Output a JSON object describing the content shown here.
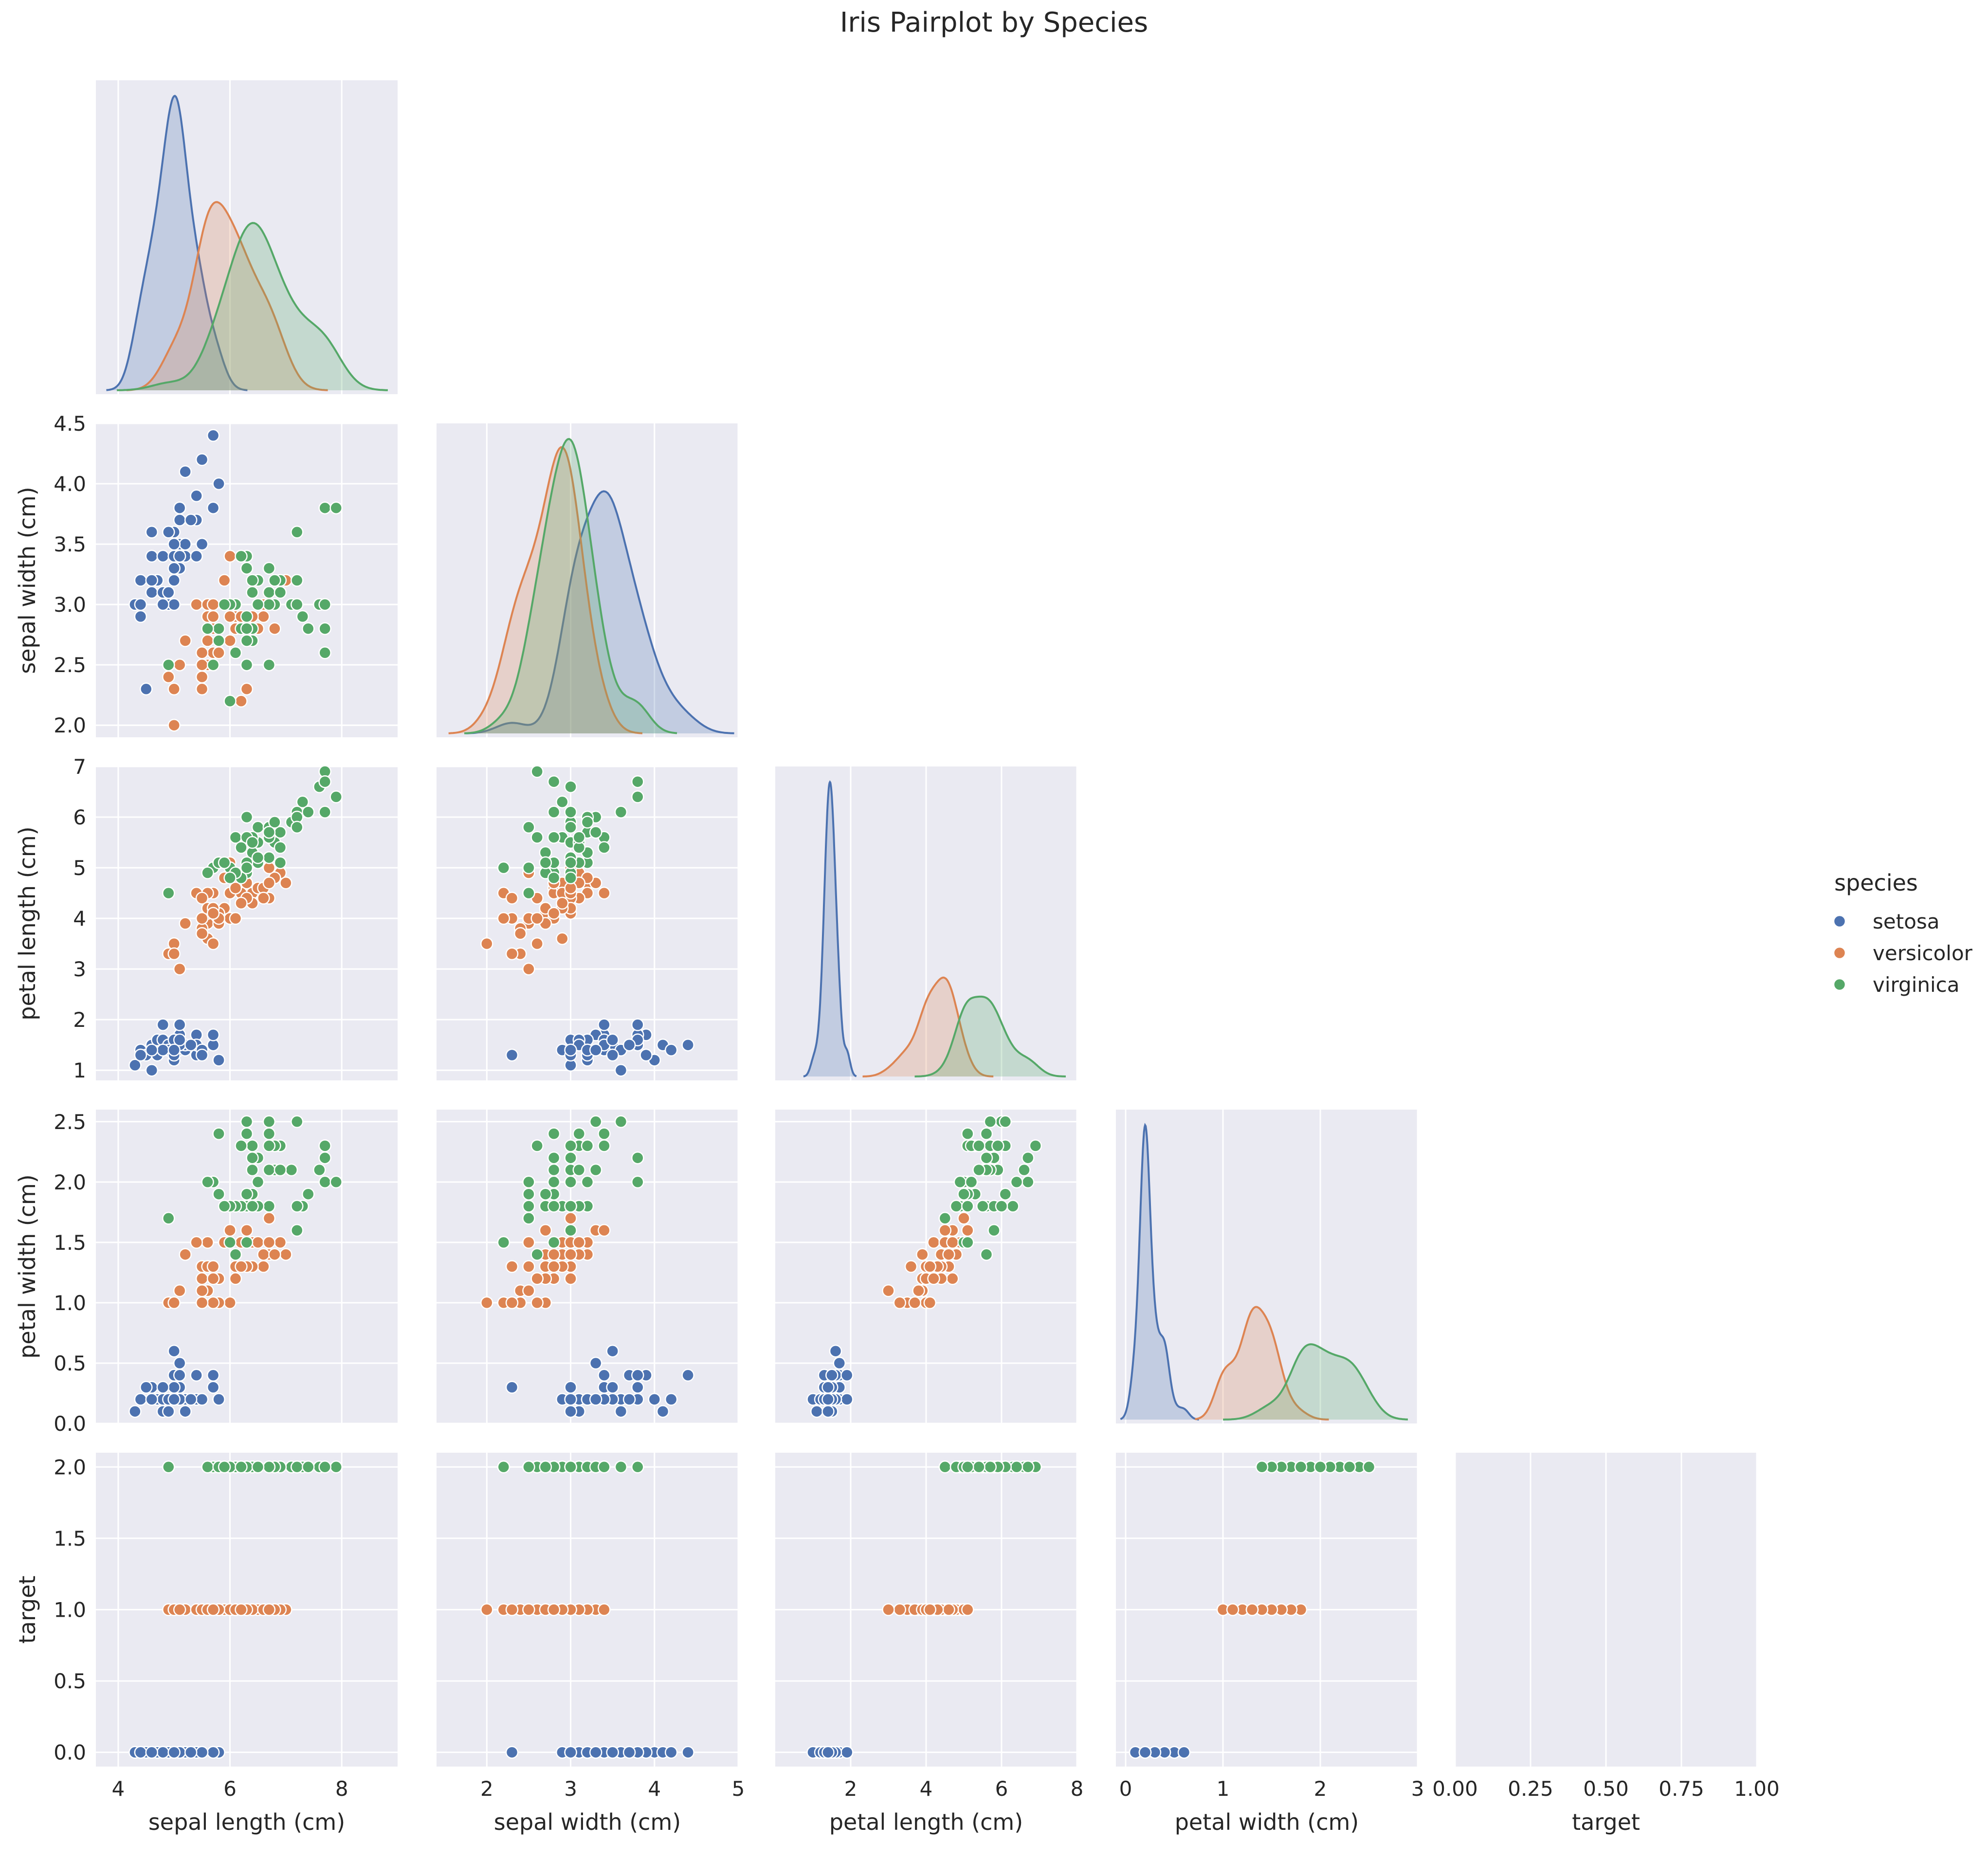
{
  "title": "Iris Pairplot by Species",
  "chart_data": {
    "type": "scatter",
    "variables": [
      {
        "key": "sl",
        "label": "sepal length (cm)",
        "range": [
          3.6,
          9.0
        ],
        "ticks": [
          4,
          6,
          8
        ],
        "tick_labels": [
          "4",
          "6",
          "8"
        ]
      },
      {
        "key": "sw",
        "label": "sepal width (cm)",
        "range": [
          1.9,
          4.5
        ],
        "ticks": [
          2.0,
          2.5,
          3.0,
          3.5,
          4.0,
          4.5
        ],
        "tick_labels": [
          "2.0",
          "2.5",
          "3.0",
          "3.5",
          "4.0",
          "4.5"
        ],
        "x_ticks": [
          2,
          3,
          4,
          5
        ],
        "x_tick_labels": [
          "2",
          "3",
          "4",
          "5"
        ],
        "x_range": [
          1.4,
          5.0
        ]
      },
      {
        "key": "pl",
        "label": "petal length (cm)",
        "range": [
          0.8,
          7.0
        ],
        "ticks": [
          1,
          2,
          3,
          4,
          5,
          6,
          7
        ],
        "tick_labels": [
          "1",
          "2",
          "3",
          "4",
          "5",
          "6",
          "7"
        ],
        "x_ticks": [
          2,
          4,
          6,
          8
        ],
        "x_tick_labels": [
          "2",
          "4",
          "6",
          "8"
        ],
        "x_range": [
          0.0,
          8.0
        ]
      },
      {
        "key": "pw",
        "label": "petal width (cm)",
        "range": [
          0.0,
          2.6
        ],
        "ticks": [
          0.0,
          0.5,
          1.0,
          1.5,
          2.0,
          2.5
        ],
        "tick_labels": [
          "0.0",
          "0.5",
          "1.0",
          "1.5",
          "2.0",
          "2.5"
        ],
        "x_ticks": [
          0,
          1,
          2,
          3
        ],
        "x_tick_labels": [
          "0",
          "1",
          "2",
          "3"
        ],
        "x_range": [
          -0.1,
          3.0
        ]
      },
      {
        "key": "t",
        "label": "target",
        "range": [
          -0.1,
          2.1
        ],
        "ticks": [
          0.0,
          0.5,
          1.0,
          1.5,
          2.0
        ],
        "tick_labels": [
          "0.0",
          "0.5",
          "1.0",
          "1.5",
          "2.0"
        ],
        "x_ticks": [
          0.0,
          0.25,
          0.5,
          0.75,
          1.0
        ],
        "x_tick_labels": [
          "0.00",
          "0.25",
          "0.50",
          "0.75",
          "1.00"
        ],
        "x_range": [
          0.0,
          1.0
        ]
      }
    ],
    "legend": {
      "title": "species",
      "placement": "right",
      "entries": [
        {
          "name": "setosa",
          "color": "#4c72b0"
        },
        {
          "name": "versicolor",
          "color": "#dd8452"
        },
        {
          "name": "virginica",
          "color": "#55a868"
        }
      ]
    },
    "kde_peaks": [
      {
        "variable": "sepal length (cm)",
        "setosa": 5.0,
        "versicolor": 5.9,
        "virginica": 6.5
      },
      {
        "variable": "sepal width (cm)",
        "setosa": 3.4,
        "versicolor": 2.8,
        "virginica": 3.0
      },
      {
        "variable": "petal length (cm)",
        "setosa": 1.5,
        "versicolor": 4.4,
        "virginica": 5.5
      },
      {
        "variable": "petal width (cm)",
        "setosa": 0.2,
        "versicolor": 1.3,
        "virginica": 2.0
      }
    ],
    "series": [
      {
        "name": "setosa",
        "target": 0,
        "points": [
          [
            5.1,
            3.5,
            1.4,
            0.2
          ],
          [
            4.9,
            3.0,
            1.4,
            0.2
          ],
          [
            4.7,
            3.2,
            1.3,
            0.2
          ],
          [
            4.6,
            3.1,
            1.5,
            0.2
          ],
          [
            5.0,
            3.6,
            1.4,
            0.2
          ],
          [
            5.4,
            3.9,
            1.7,
            0.4
          ],
          [
            4.6,
            3.4,
            1.4,
            0.3
          ],
          [
            5.0,
            3.4,
            1.5,
            0.2
          ],
          [
            4.4,
            2.9,
            1.4,
            0.2
          ],
          [
            4.9,
            3.1,
            1.5,
            0.1
          ],
          [
            5.4,
            3.7,
            1.5,
            0.2
          ],
          [
            4.8,
            3.4,
            1.6,
            0.2
          ],
          [
            4.8,
            3.0,
            1.4,
            0.1
          ],
          [
            4.3,
            3.0,
            1.1,
            0.1
          ],
          [
            5.8,
            4.0,
            1.2,
            0.2
          ],
          [
            5.7,
            4.4,
            1.5,
            0.4
          ],
          [
            5.4,
            3.9,
            1.3,
            0.4
          ],
          [
            5.1,
            3.5,
            1.4,
            0.3
          ],
          [
            5.7,
            3.8,
            1.7,
            0.3
          ],
          [
            5.1,
            3.8,
            1.5,
            0.3
          ],
          [
            5.4,
            3.4,
            1.7,
            0.2
          ],
          [
            5.1,
            3.7,
            1.5,
            0.4
          ],
          [
            4.6,
            3.6,
            1.0,
            0.2
          ],
          [
            5.1,
            3.3,
            1.7,
            0.5
          ],
          [
            4.8,
            3.4,
            1.9,
            0.2
          ],
          [
            5.0,
            3.0,
            1.6,
            0.2
          ],
          [
            5.0,
            3.4,
            1.6,
            0.4
          ],
          [
            5.2,
            3.5,
            1.5,
            0.2
          ],
          [
            5.2,
            3.4,
            1.4,
            0.2
          ],
          [
            4.7,
            3.2,
            1.6,
            0.2
          ],
          [
            4.8,
            3.1,
            1.6,
            0.2
          ],
          [
            5.4,
            3.4,
            1.5,
            0.4
          ],
          [
            5.2,
            4.1,
            1.5,
            0.1
          ],
          [
            5.5,
            4.2,
            1.4,
            0.2
          ],
          [
            4.9,
            3.1,
            1.5,
            0.2
          ],
          [
            5.0,
            3.2,
            1.2,
            0.2
          ],
          [
            5.5,
            3.5,
            1.3,
            0.2
          ],
          [
            4.9,
            3.6,
            1.4,
            0.1
          ],
          [
            4.4,
            3.0,
            1.3,
            0.2
          ],
          [
            5.1,
            3.4,
            1.5,
            0.2
          ],
          [
            5.0,
            3.5,
            1.3,
            0.3
          ],
          [
            4.5,
            2.3,
            1.3,
            0.3
          ],
          [
            4.4,
            3.2,
            1.3,
            0.2
          ],
          [
            5.0,
            3.5,
            1.6,
            0.6
          ],
          [
            5.1,
            3.8,
            1.9,
            0.4
          ],
          [
            4.8,
            3.0,
            1.4,
            0.3
          ],
          [
            5.1,
            3.8,
            1.6,
            0.2
          ],
          [
            4.6,
            3.2,
            1.4,
            0.2
          ],
          [
            5.3,
            3.7,
            1.5,
            0.2
          ],
          [
            5.0,
            3.3,
            1.4,
            0.2
          ]
        ]
      },
      {
        "name": "versicolor",
        "target": 1,
        "points": [
          [
            7.0,
            3.2,
            4.7,
            1.4
          ],
          [
            6.4,
            3.2,
            4.5,
            1.5
          ],
          [
            6.9,
            3.1,
            4.9,
            1.5
          ],
          [
            5.5,
            2.3,
            4.0,
            1.3
          ],
          [
            6.5,
            2.8,
            4.6,
            1.5
          ],
          [
            5.7,
            2.8,
            4.5,
            1.3
          ],
          [
            6.3,
            3.3,
            4.7,
            1.6
          ],
          [
            4.9,
            2.4,
            3.3,
            1.0
          ],
          [
            6.6,
            2.9,
            4.6,
            1.3
          ],
          [
            5.2,
            2.7,
            3.9,
            1.4
          ],
          [
            5.0,
            2.0,
            3.5,
            1.0
          ],
          [
            5.9,
            3.0,
            4.2,
            1.5
          ],
          [
            6.0,
            2.2,
            4.0,
            1.0
          ],
          [
            6.1,
            2.9,
            4.7,
            1.4
          ],
          [
            5.6,
            2.9,
            3.6,
            1.3
          ],
          [
            6.7,
            3.1,
            4.4,
            1.4
          ],
          [
            5.6,
            3.0,
            4.5,
            1.5
          ],
          [
            5.8,
            2.7,
            4.1,
            1.0
          ],
          [
            6.2,
            2.2,
            4.5,
            1.5
          ],
          [
            5.6,
            2.5,
            3.9,
            1.1
          ],
          [
            5.9,
            3.2,
            4.8,
            1.8
          ],
          [
            6.1,
            2.8,
            4.0,
            1.3
          ],
          [
            6.3,
            2.5,
            4.9,
            1.5
          ],
          [
            6.1,
            2.8,
            4.7,
            1.2
          ],
          [
            6.4,
            2.9,
            4.3,
            1.3
          ],
          [
            6.6,
            3.0,
            4.4,
            1.4
          ],
          [
            6.8,
            2.8,
            4.8,
            1.4
          ],
          [
            6.7,
            3.0,
            5.0,
            1.7
          ],
          [
            6.0,
            2.9,
            4.5,
            1.5
          ],
          [
            5.7,
            2.6,
            3.5,
            1.0
          ],
          [
            5.5,
            2.4,
            3.8,
            1.1
          ],
          [
            5.5,
            2.4,
            3.7,
            1.0
          ],
          [
            5.8,
            2.7,
            3.9,
            1.2
          ],
          [
            6.0,
            2.7,
            5.1,
            1.6
          ],
          [
            5.4,
            3.0,
            4.5,
            1.5
          ],
          [
            6.0,
            3.4,
            4.5,
            1.6
          ],
          [
            6.7,
            3.1,
            4.7,
            1.5
          ],
          [
            6.3,
            2.3,
            4.4,
            1.3
          ],
          [
            5.6,
            3.0,
            4.1,
            1.3
          ],
          [
            5.5,
            2.5,
            4.0,
            1.3
          ],
          [
            5.5,
            2.6,
            4.4,
            1.2
          ],
          [
            6.1,
            3.0,
            4.6,
            1.4
          ],
          [
            5.8,
            2.6,
            4.0,
            1.2
          ],
          [
            5.0,
            2.3,
            3.3,
            1.0
          ],
          [
            5.6,
            2.7,
            4.2,
            1.3
          ],
          [
            5.7,
            3.0,
            4.2,
            1.2
          ],
          [
            5.7,
            2.9,
            4.2,
            1.3
          ],
          [
            6.2,
            2.9,
            4.3,
            1.3
          ],
          [
            5.1,
            2.5,
            3.0,
            1.1
          ],
          [
            5.7,
            2.8,
            4.1,
            1.3
          ]
        ]
      },
      {
        "name": "virginica",
        "target": 2,
        "points": [
          [
            6.3,
            3.3,
            6.0,
            2.5
          ],
          [
            5.8,
            2.7,
            5.1,
            1.9
          ],
          [
            7.1,
            3.0,
            5.9,
            2.1
          ],
          [
            6.3,
            2.9,
            5.6,
            1.8
          ],
          [
            6.5,
            3.0,
            5.8,
            2.2
          ],
          [
            7.6,
            3.0,
            6.6,
            2.1
          ],
          [
            4.9,
            2.5,
            4.5,
            1.7
          ],
          [
            7.3,
            2.9,
            6.3,
            1.8
          ],
          [
            6.7,
            2.5,
            5.8,
            1.8
          ],
          [
            7.2,
            3.6,
            6.1,
            2.5
          ],
          [
            6.5,
            3.2,
            5.1,
            2.0
          ],
          [
            6.4,
            2.7,
            5.3,
            1.9
          ],
          [
            6.8,
            3.0,
            5.5,
            2.1
          ],
          [
            5.7,
            2.5,
            5.0,
            2.0
          ],
          [
            5.8,
            2.8,
            5.1,
            2.4
          ],
          [
            6.4,
            3.2,
            5.3,
            2.3
          ],
          [
            6.5,
            3.0,
            5.5,
            1.8
          ],
          [
            7.7,
            3.8,
            6.7,
            2.2
          ],
          [
            7.7,
            2.6,
            6.9,
            2.3
          ],
          [
            6.0,
            2.2,
            5.0,
            1.5
          ],
          [
            6.9,
            3.2,
            5.7,
            2.3
          ],
          [
            5.6,
            2.8,
            4.9,
            2.0
          ],
          [
            7.7,
            2.8,
            6.7,
            2.0
          ],
          [
            6.3,
            2.7,
            4.9,
            1.8
          ],
          [
            6.7,
            3.3,
            5.7,
            2.1
          ],
          [
            7.2,
            3.2,
            6.0,
            1.8
          ],
          [
            6.2,
            2.8,
            4.8,
            1.8
          ],
          [
            6.1,
            3.0,
            4.9,
            1.8
          ],
          [
            6.4,
            2.8,
            5.6,
            2.1
          ],
          [
            7.2,
            3.0,
            5.8,
            1.6
          ],
          [
            7.4,
            2.8,
            6.1,
            1.9
          ],
          [
            7.9,
            3.8,
            6.4,
            2.0
          ],
          [
            6.4,
            2.8,
            5.6,
            2.2
          ],
          [
            6.3,
            2.8,
            5.1,
            1.5
          ],
          [
            6.1,
            2.6,
            5.6,
            1.4
          ],
          [
            7.7,
            3.0,
            6.1,
            2.3
          ],
          [
            6.3,
            3.4,
            5.6,
            2.4
          ],
          [
            6.4,
            3.1,
            5.5,
            1.8
          ],
          [
            6.0,
            3.0,
            4.8,
            1.8
          ],
          [
            6.9,
            3.1,
            5.4,
            2.1
          ],
          [
            6.7,
            3.1,
            5.6,
            2.4
          ],
          [
            6.9,
            3.1,
            5.1,
            2.3
          ],
          [
            5.8,
            2.7,
            5.1,
            1.9
          ],
          [
            6.8,
            3.2,
            5.9,
            2.3
          ],
          [
            6.7,
            3.3,
            5.7,
            2.5
          ],
          [
            6.7,
            3.0,
            5.2,
            2.3
          ],
          [
            6.3,
            2.5,
            5.0,
            1.9
          ],
          [
            6.5,
            3.0,
            5.2,
            2.0
          ],
          [
            6.2,
            3.4,
            5.4,
            2.3
          ],
          [
            5.9,
            3.0,
            5.1,
            1.8
          ]
        ]
      }
    ]
  }
}
